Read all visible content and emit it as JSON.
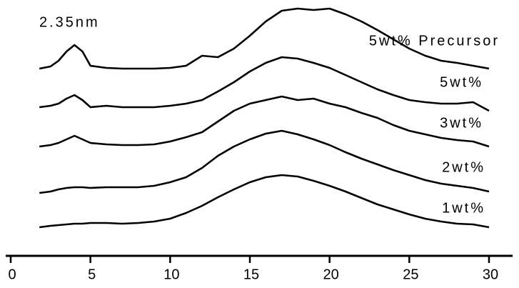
{
  "chart_data": {
    "type": "line",
    "annotation": "2.35nm",
    "x": [
      1.8,
      2.5,
      3,
      3.5,
      4,
      4.5,
      5,
      6,
      7,
      8,
      9,
      10,
      11,
      12,
      13,
      14,
      15,
      16,
      17,
      18,
      19,
      20,
      21,
      22,
      23,
      24,
      25,
      26,
      27,
      28,
      29,
      30
    ],
    "series": [
      {
        "name": "5wt% Precursor",
        "color": "#000000",
        "values": [
          262,
          265,
          273,
          286,
          295,
          286,
          266,
          263,
          262,
          262,
          262,
          263,
          266,
          280,
          278,
          290,
          308,
          328,
          343,
          346,
          344,
          346,
          338,
          328,
          316,
          303,
          290,
          280,
          273,
          270,
          266,
          262
        ]
      },
      {
        "name": "5wt%",
        "color": "#000000",
        "values": [
          208,
          210,
          213,
          220,
          225,
          218,
          208,
          210,
          208,
          208,
          208,
          210,
          213,
          218,
          230,
          243,
          258,
          270,
          278,
          276,
          270,
          263,
          253,
          243,
          233,
          225,
          218,
          215,
          213,
          213,
          215,
          203
        ]
      },
      {
        "name": "3wt%",
        "color": "#000000",
        "values": [
          153,
          155,
          158,
          163,
          168,
          163,
          158,
          156,
          155,
          155,
          156,
          160,
          166,
          173,
          188,
          203,
          213,
          218,
          223,
          218,
          220,
          213,
          208,
          200,
          193,
          183,
          175,
          170,
          165,
          162,
          160,
          153
        ]
      },
      {
        "name": "2wt%",
        "color": "#000000",
        "values": [
          88,
          90,
          93,
          95,
          96,
          96,
          95,
          96,
          96,
          96,
          98,
          103,
          110,
          123,
          140,
          153,
          163,
          171,
          175,
          170,
          163,
          155,
          145,
          136,
          128,
          120,
          113,
          106,
          101,
          98,
          95,
          90
        ]
      },
      {
        "name": "1wt%",
        "color": "#000000",
        "values": [
          40,
          42,
          43,
          44,
          45,
          45,
          46,
          46,
          45,
          46,
          48,
          52,
          60,
          70,
          82,
          93,
          103,
          110,
          113,
          111,
          105,
          98,
          90,
          81,
          72,
          65,
          58,
          52,
          48,
          45,
          44,
          40
        ]
      }
    ],
    "xlim": [
      0,
      30
    ],
    "xticks": [
      0,
      5,
      10,
      15,
      20,
      25,
      30
    ],
    "ylim": [
      0,
      358
    ]
  }
}
